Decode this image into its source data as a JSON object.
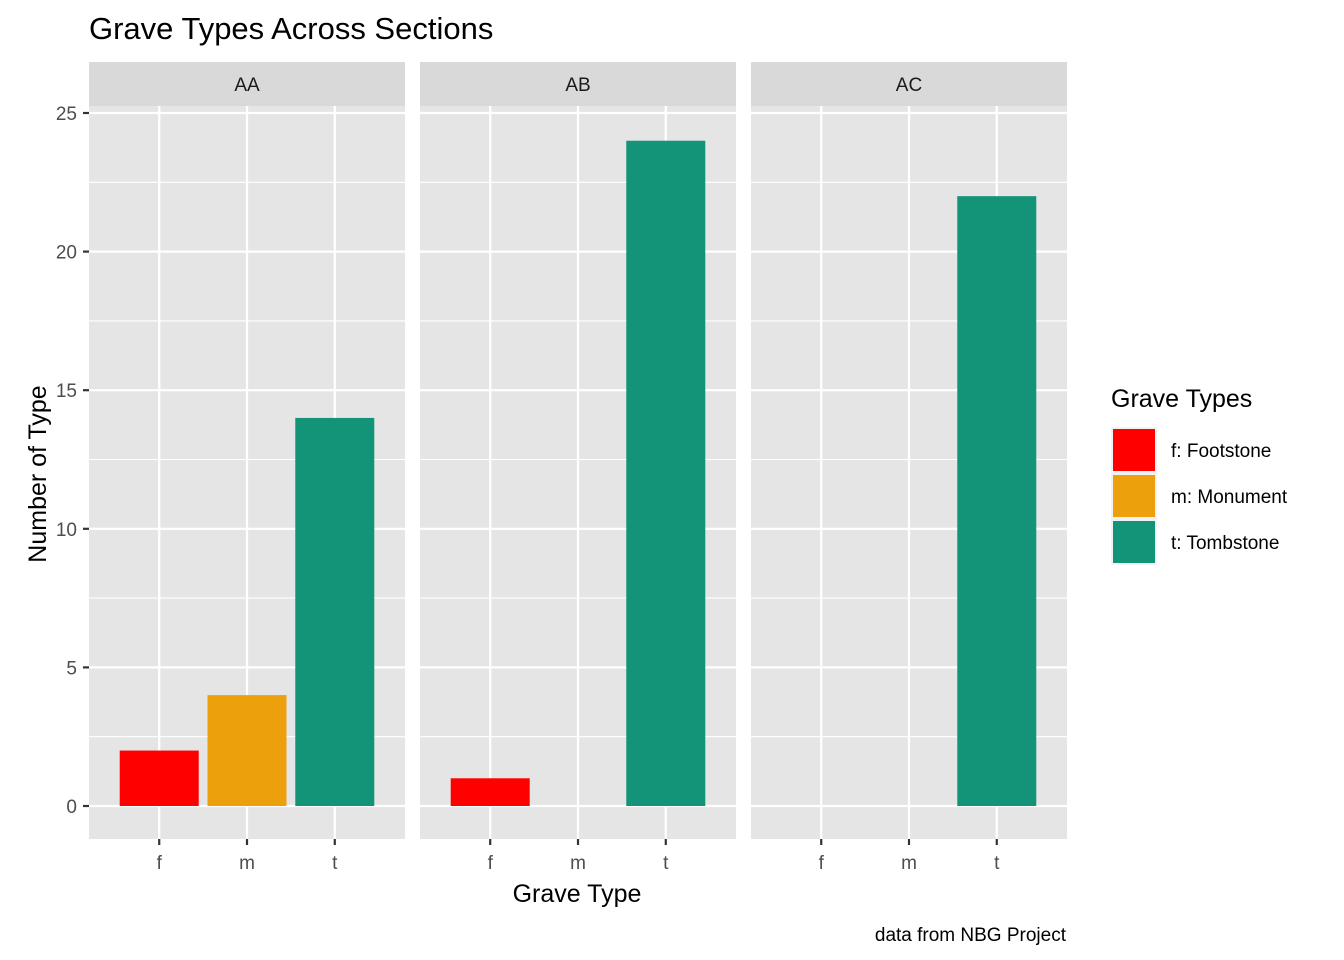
{
  "chart_data": {
    "type": "bar",
    "title": "Grave Types Across Sections",
    "xlabel": "Grave Type",
    "ylabel": "Number of Type",
    "caption": "data from NBG Project",
    "categories": [
      "f",
      "m",
      "t"
    ],
    "ylim": [
      0,
      26.3
    ],
    "yticks": [
      0,
      5,
      10,
      15,
      20,
      25
    ],
    "grid": true,
    "facets": [
      {
        "label": "AA",
        "values": [
          2,
          4,
          14
        ]
      },
      {
        "label": "AB",
        "values": [
          1,
          0,
          24
        ]
      },
      {
        "label": "AC",
        "values": [
          0,
          0,
          22
        ]
      }
    ],
    "legend": {
      "title": "Grave Types",
      "placement": "right",
      "items": [
        {
          "key": "f",
          "label": "f: Footstone",
          "color": "#ff0000"
        },
        {
          "key": "m",
          "label": "m: Monument",
          "color": "#eca00c"
        },
        {
          "key": "t",
          "label": "t: Tombstone",
          "color": "#139378"
        }
      ]
    }
  }
}
